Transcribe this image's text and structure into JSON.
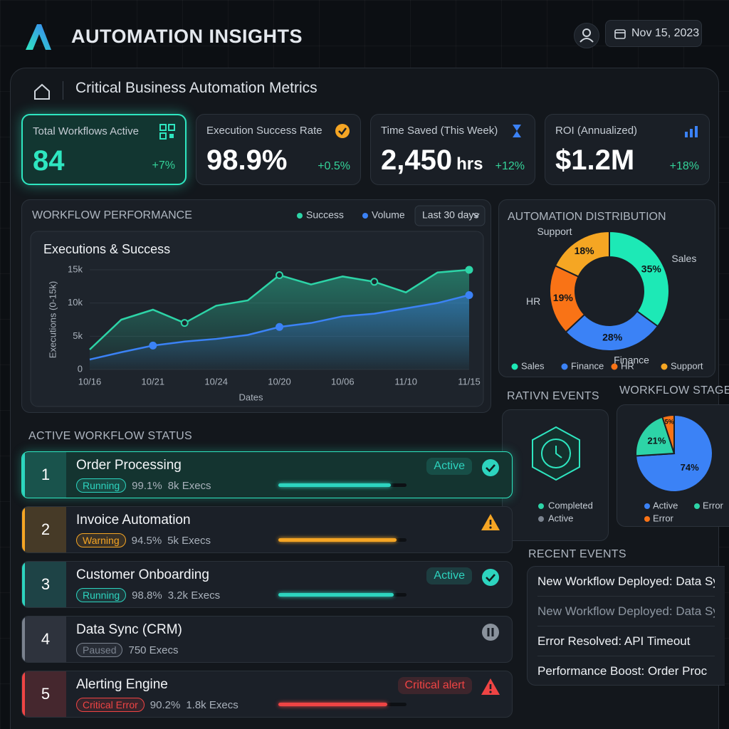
{
  "header": {
    "title": "AUTOMATION INSIGHTS",
    "date": "Nov 15, 2023"
  },
  "panel": {
    "title": "Critical Business Automation Metrics"
  },
  "kpis": [
    {
      "label": "Total Workflows Active",
      "value": "84",
      "change": "+7%"
    },
    {
      "label": "Execution Success Rate",
      "value": "98.9%",
      "change": "+0.5%"
    },
    {
      "label": "Time Saved (This Week)",
      "value": "2,450",
      "unit": "hrs",
      "change": "+12%"
    },
    {
      "label": "ROI (Annualized)",
      "value": "$1.2M",
      "change": "+18%"
    }
  ],
  "performance": {
    "section": "WORKFLOW PERFORMANCE",
    "range": "Last 30 days"
  },
  "chart_data": [
    {
      "type": "line",
      "title": "Executions & Success",
      "y_label": "Executions (0-15k)",
      "x_label": "Dates",
      "categories": [
        "10/16",
        null,
        "10/21",
        null,
        "10/24",
        null,
        "10/20",
        null,
        "10/06",
        null,
        "11/10",
        null,
        "11/15"
      ],
      "series": [
        {
          "name": "Success",
          "color": "#2dd4a7",
          "values": [
            3000,
            7500,
            9000,
            7000,
            9600,
            10400,
            14200,
            12800,
            14000,
            13200,
            11600,
            14600,
            15000
          ]
        },
        {
          "name": "Volume",
          "color": "#3b82f6",
          "values": [
            1500,
            2600,
            3600,
            4200,
            4600,
            5200,
            6400,
            7000,
            8000,
            8400,
            9200,
            10000,
            11200
          ]
        }
      ],
      "ylim": [
        0,
        15000
      ],
      "yticks": [
        0,
        {
          "value": 5000,
          "label": "5k"
        },
        {
          "value": 10000,
          "label": "10k"
        },
        {
          "value": 15000,
          "label": "15k"
        }
      ],
      "grid": true
    },
    {
      "type": "donut",
      "title": "AUTOMATION DISTRIBUTION",
      "categories": [
        "Sales",
        "Finance",
        "HR",
        "Support"
      ],
      "values": [
        35,
        28,
        19,
        18
      ],
      "value_labels": [
        "35%",
        "28%",
        "19%",
        "18%"
      ],
      "colors": [
        "#1de9b6",
        "#3b82f6",
        "#f97316",
        "#f5a623"
      ]
    },
    {
      "type": "pie",
      "title": "WORKFLOW STAGE",
      "categories": [
        "Active",
        "Error",
        "Error"
      ],
      "values": [
        74,
        21,
        5
      ],
      "value_labels": [
        "74%",
        "21%",
        "5%"
      ],
      "colors": [
        "#3b82f6",
        "#2dd4a7",
        "#f97316"
      ]
    }
  ],
  "events": {
    "title": "RATIVN EVENTS",
    "legend": [
      "Completed",
      "Active"
    ]
  },
  "status": {
    "title": "ACTIVE WORKFLOW STATUS",
    "items": [
      {
        "rank": 1,
        "name": "Order Processing",
        "state": "Running",
        "rate": "99.1%",
        "execs": "8k Execs",
        "progress": 88,
        "status_label": "Active",
        "icon": "check",
        "color": "#2dd4bf"
      },
      {
        "rank": 2,
        "name": "Invoice Automation",
        "state": "Warning",
        "rate": "94.5%",
        "execs": "5k Execs",
        "progress": 92,
        "icon": "warning",
        "color": "#f5a524"
      },
      {
        "rank": 3,
        "name": "Customer Onboarding",
        "state": "Running",
        "rate": "98.8%",
        "execs": "3.2k Execs",
        "progress": 90,
        "status_label": "Active",
        "icon": "check",
        "color": "#2dd4bf"
      },
      {
        "rank": 4,
        "name": "Data Sync (CRM)",
        "state": "Paused",
        "execs": "750 Execs",
        "icon": "pause",
        "color": "#7b838f"
      },
      {
        "rank": 5,
        "name": "Alerting Engine",
        "state": "Critical Error",
        "rate": "90.2%",
        "execs": "1.8k Execs",
        "progress": 85,
        "status_label": "Critical alert",
        "icon": "alert",
        "color": "#ef4444"
      }
    ]
  },
  "recent": {
    "title": "RECENT EVENTS",
    "items": [
      "New Workflow Deployed: Data Sy",
      "New Workflow Deployed: Data Sy",
      "Error Resolved: API Timeout",
      "Performance Boost: Order Proc"
    ]
  }
}
